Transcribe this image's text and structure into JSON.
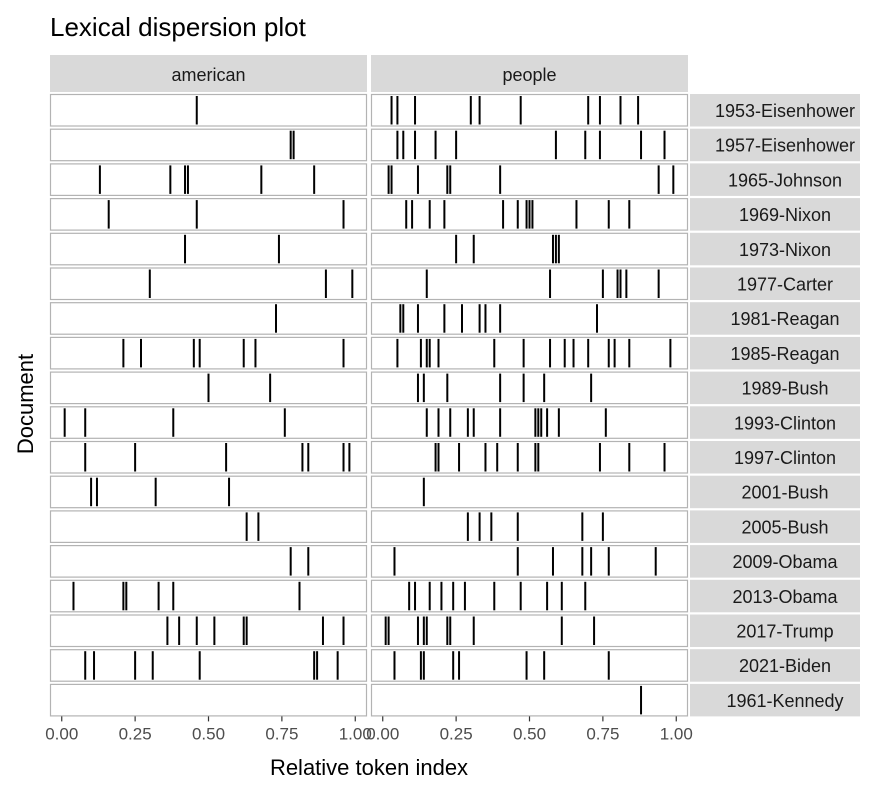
{
  "chart_data": {
    "type": "strip",
    "title": "Lexical dispersion plot",
    "xlabel": "Relative token index",
    "ylabel": "Document",
    "xlim": [
      0,
      1
    ],
    "xticks": [
      "0.00",
      "0.25",
      "0.50",
      "0.75",
      "1.00"
    ],
    "facets": [
      "american",
      "people"
    ],
    "documents": [
      "1953-Eisenhower",
      "1957-Eisenhower",
      "1965-Johnson",
      "1969-Nixon",
      "1973-Nixon",
      "1977-Carter",
      "1981-Reagan",
      "1985-Reagan",
      "1989-Bush",
      "1993-Clinton",
      "1997-Clinton",
      "2001-Bush",
      "2005-Bush",
      "2009-Obama",
      "2013-Obama",
      "2017-Trump",
      "2021-Biden",
      "1961-Kennedy"
    ],
    "positions": {
      "american": [
        [
          0.46
        ],
        [
          0.78,
          0.79
        ],
        [
          0.13,
          0.37,
          0.42,
          0.43,
          0.68,
          0.86
        ],
        [
          0.16,
          0.46,
          0.96
        ],
        [
          0.42,
          0.74
        ],
        [
          0.3,
          0.9,
          0.99
        ],
        [
          0.73
        ],
        [
          0.21,
          0.27,
          0.45,
          0.47,
          0.62,
          0.66,
          0.96
        ],
        [
          0.5,
          0.71
        ],
        [
          0.01,
          0.08,
          0.38,
          0.76
        ],
        [
          0.08,
          0.25,
          0.56,
          0.82,
          0.84,
          0.96,
          0.98
        ],
        [
          0.1,
          0.12,
          0.32,
          0.57
        ],
        [
          0.63,
          0.67
        ],
        [
          0.78,
          0.84
        ],
        [
          0.04,
          0.21,
          0.22,
          0.33,
          0.38,
          0.81
        ],
        [
          0.36,
          0.4,
          0.46,
          0.52,
          0.62,
          0.63,
          0.89,
          0.96
        ],
        [
          0.08,
          0.11,
          0.25,
          0.31,
          0.47,
          0.86,
          0.87,
          0.94
        ],
        []
      ],
      "people": [
        [
          0.03,
          0.05,
          0.11,
          0.3,
          0.33,
          0.47,
          0.7,
          0.74,
          0.81,
          0.87
        ],
        [
          0.05,
          0.07,
          0.11,
          0.18,
          0.25,
          0.59,
          0.69,
          0.74,
          0.88,
          0.96
        ],
        [
          0.02,
          0.03,
          0.12,
          0.22,
          0.23,
          0.4,
          0.94,
          0.99
        ],
        [
          0.08,
          0.1,
          0.16,
          0.21,
          0.41,
          0.46,
          0.49,
          0.5,
          0.51,
          0.66,
          0.77,
          0.84
        ],
        [
          0.25,
          0.31,
          0.58,
          0.59,
          0.6
        ],
        [
          0.15,
          0.57,
          0.75,
          0.8,
          0.81,
          0.83,
          0.94
        ],
        [
          0.06,
          0.07,
          0.12,
          0.21,
          0.27,
          0.33,
          0.35,
          0.4,
          0.73
        ],
        [
          0.05,
          0.13,
          0.15,
          0.16,
          0.19,
          0.38,
          0.48,
          0.57,
          0.62,
          0.65,
          0.7,
          0.77,
          0.79,
          0.84,
          0.98
        ],
        [
          0.12,
          0.14,
          0.22,
          0.4,
          0.48,
          0.55,
          0.71
        ],
        [
          0.15,
          0.19,
          0.23,
          0.29,
          0.31,
          0.4,
          0.52,
          0.53,
          0.54,
          0.56,
          0.6,
          0.76
        ],
        [
          0.18,
          0.19,
          0.26,
          0.35,
          0.39,
          0.46,
          0.52,
          0.53,
          0.74,
          0.84,
          0.96
        ],
        [
          0.14
        ],
        [
          0.29,
          0.33,
          0.37,
          0.46,
          0.68,
          0.75
        ],
        [
          0.04,
          0.46,
          0.58,
          0.68,
          0.71,
          0.77,
          0.93
        ],
        [
          0.09,
          0.11,
          0.16,
          0.2,
          0.24,
          0.28,
          0.38,
          0.47,
          0.56,
          0.61,
          0.69
        ],
        [
          0.01,
          0.02,
          0.12,
          0.14,
          0.15,
          0.22,
          0.23,
          0.31,
          0.61,
          0.72
        ],
        [
          0.04,
          0.13,
          0.14,
          0.24,
          0.26,
          0.49,
          0.55,
          0.77
        ],
        [
          0.88
        ]
      ]
    }
  }
}
